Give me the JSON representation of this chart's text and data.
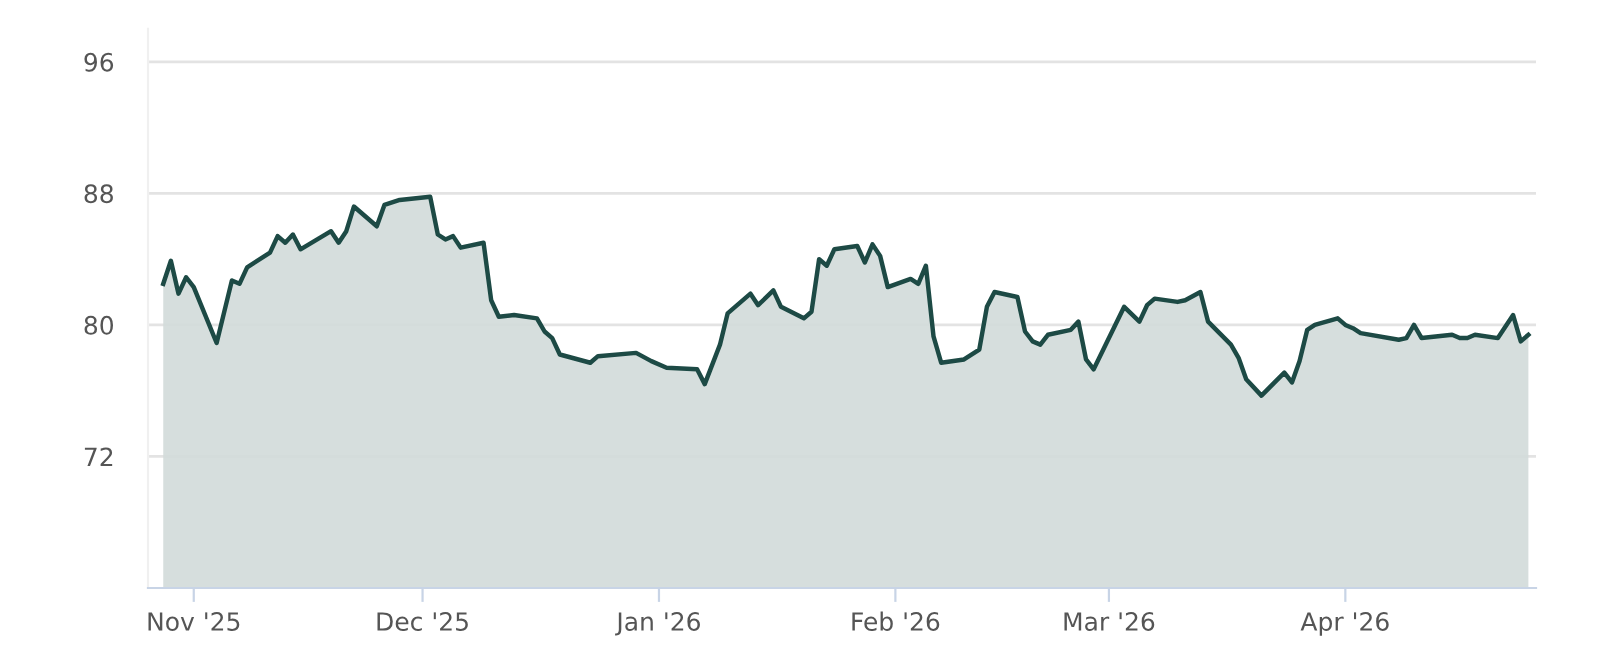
{
  "chart_data": {
    "type": "area",
    "x": [
      "2025-10-28",
      "2025-10-29",
      "2025-10-30",
      "2025-10-31",
      "2025-11-01",
      "2025-11-04",
      "2025-11-06",
      "2025-11-07",
      "2025-11-08",
      "2025-11-11",
      "2025-11-12",
      "2025-11-13",
      "2025-11-14",
      "2025-11-15",
      "2025-11-19",
      "2025-11-20",
      "2025-11-21",
      "2025-11-22",
      "2025-11-25",
      "2025-11-26",
      "2025-11-28",
      "2025-12-02",
      "2025-12-03",
      "2025-12-04",
      "2025-12-05",
      "2025-12-06",
      "2025-12-09",
      "2025-12-10",
      "2025-12-11",
      "2025-12-13",
      "2025-12-16",
      "2025-12-17",
      "2025-12-18",
      "2025-12-19",
      "2025-12-23",
      "2025-12-24",
      "2025-12-29",
      "2025-12-31",
      "2026-01-02",
      "2026-01-06",
      "2026-01-07",
      "2026-01-09",
      "2026-01-10",
      "2026-01-13",
      "2026-01-14",
      "2026-01-16",
      "2026-01-17",
      "2026-01-20",
      "2026-01-21",
      "2026-01-22",
      "2026-01-23",
      "2026-01-24",
      "2026-01-27",
      "2026-01-28",
      "2026-01-29",
      "2026-01-30",
      "2026-01-31",
      "2026-02-03",
      "2026-02-04",
      "2026-02-05",
      "2026-02-06",
      "2026-02-07",
      "2026-02-10",
      "2026-02-12",
      "2026-02-13",
      "2026-02-14",
      "2026-02-17",
      "2026-02-18",
      "2026-02-19",
      "2026-02-20",
      "2026-02-21",
      "2026-02-24",
      "2026-02-25",
      "2026-02-26",
      "2026-02-27",
      "2026-03-03",
      "2026-03-05",
      "2026-03-06",
      "2026-03-07",
      "2026-03-10",
      "2026-03-11",
      "2026-03-13",
      "2026-03-14",
      "2026-03-17",
      "2026-03-18",
      "2026-03-19",
      "2026-03-21",
      "2026-03-24",
      "2026-03-25",
      "2026-03-26",
      "2026-03-27",
      "2026-03-28",
      "2026-03-31",
      "2026-04-01",
      "2026-04-02",
      "2026-04-03",
      "2026-04-08",
      "2026-04-09",
      "2026-04-10",
      "2026-04-11",
      "2026-04-15",
      "2026-04-16",
      "2026-04-17",
      "2026-04-18",
      "2026-04-21",
      "2026-04-23",
      "2026-04-24",
      "2026-04-25"
    ],
    "series": [
      {
        "color": "#1d4a45",
        "values": [
          82.5,
          83.9,
          81.9,
          82.9,
          82.3,
          78.9,
          82.7,
          82.5,
          83.5,
          84.4,
          85.4,
          85.0,
          85.5,
          84.6,
          85.7,
          85.0,
          85.7,
          87.2,
          86.0,
          87.3,
          87.6,
          87.8,
          85.5,
          85.2,
          85.4,
          84.7,
          85.0,
          81.5,
          80.5,
          80.6,
          80.4,
          79.6,
          79.2,
          78.2,
          77.7,
          78.1,
          78.3,
          77.8,
          77.4,
          77.3,
          76.4,
          78.8,
          80.7,
          81.9,
          81.2,
          82.1,
          81.1,
          80.4,
          80.8,
          84.0,
          83.6,
          84.6,
          84.8,
          83.8,
          84.9,
          84.2,
          82.3,
          82.8,
          82.5,
          83.6,
          79.3,
          77.7,
          77.9,
          78.5,
          81.1,
          82.0,
          81.7,
          79.6,
          79.0,
          78.8,
          79.4,
          79.7,
          80.2,
          77.9,
          77.3,
          81.1,
          80.2,
          81.2,
          81.6,
          81.4,
          81.5,
          82.0,
          80.2,
          78.8,
          78.0,
          76.7,
          75.7,
          77.1,
          76.5,
          77.8,
          79.7,
          80.0,
          80.4,
          80.0,
          79.8,
          79.5,
          79.1,
          79.2,
          80.0,
          79.2,
          79.4,
          79.2,
          79.2,
          79.4,
          79.2,
          80.6,
          79.0,
          79.4
        ]
      }
    ],
    "xlim": [
      "2025-10-26",
      "2026-04-26"
    ],
    "xticks": [
      {
        "value": "2025-11-01",
        "label": "Nov '25"
      },
      {
        "value": "2025-12-01",
        "label": "Dec '25"
      },
      {
        "value": "2026-01-01",
        "label": "Jan '26"
      },
      {
        "value": "2026-02-01",
        "label": "Feb '26"
      },
      {
        "value": "2026-03-01",
        "label": "Mar '26"
      },
      {
        "value": "2026-04-01",
        "label": "Apr '26"
      }
    ],
    "ylim": [
      64,
      98
    ],
    "yticks": [
      72,
      80,
      88,
      96
    ],
    "grid": "y",
    "legend": false
  }
}
